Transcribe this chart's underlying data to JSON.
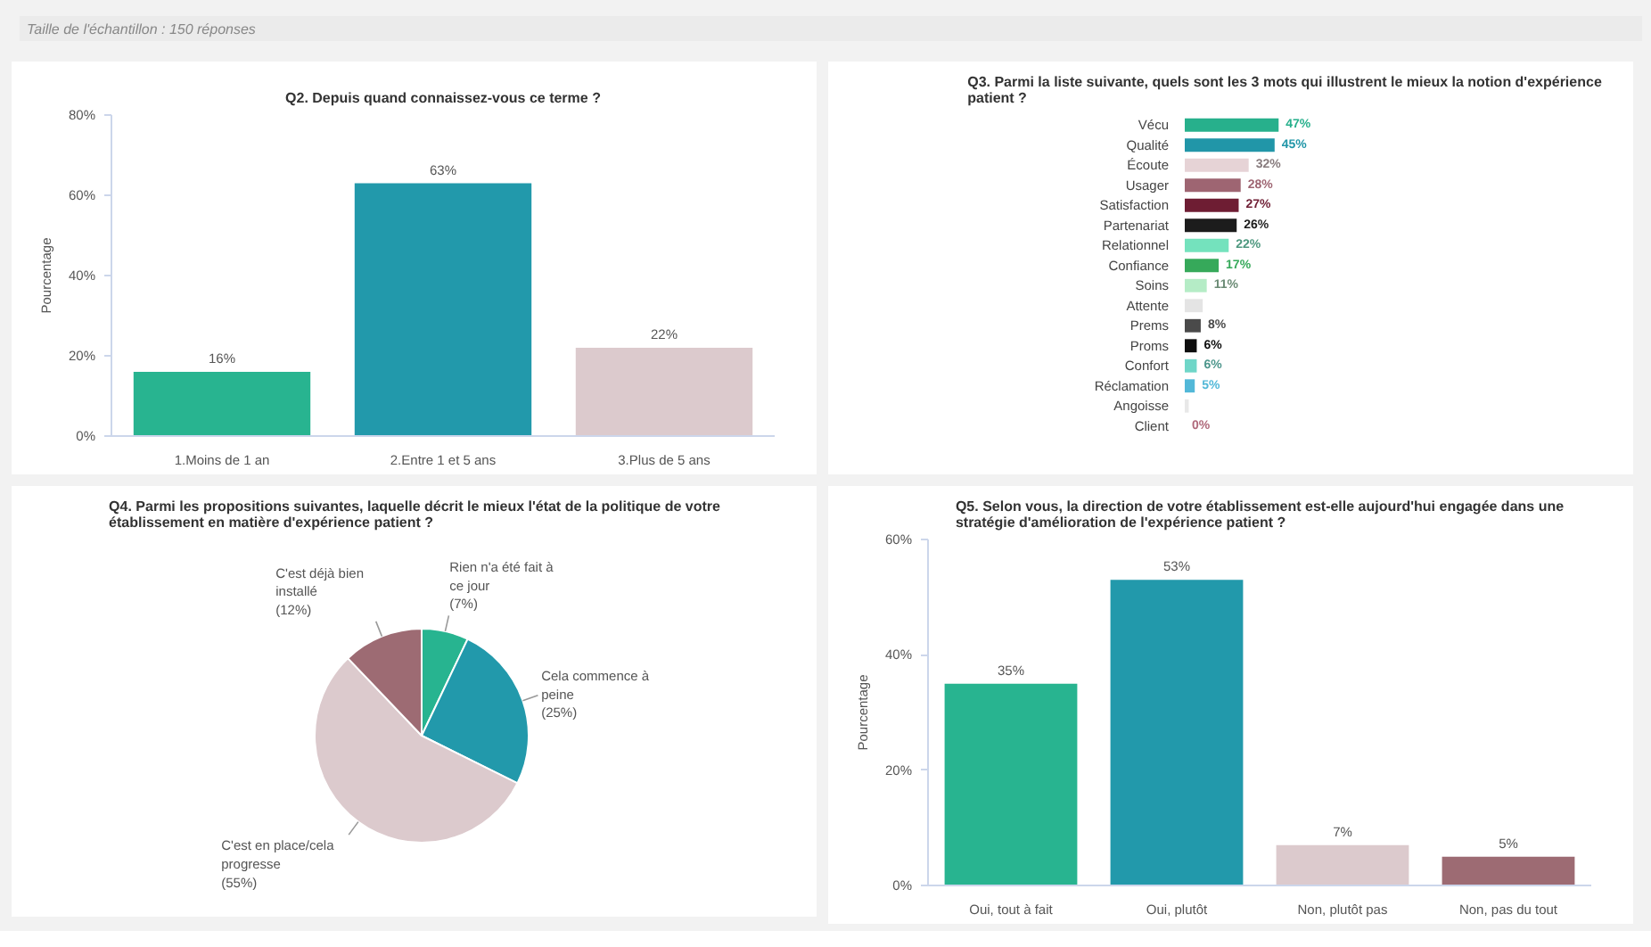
{
  "chart_data": [
    {
      "type": "bar",
      "title": "Q2. Depuis quand connaissez-vous ce terme ?",
      "ylabel": "Pourcentage",
      "annotations": [
        "Taille de l'échantillon : 150 réponses"
      ],
      "categories": [
        "1.Moins de 1 an",
        "2.Entre 1 et 5 ans",
        "3.Plus de 5 ans"
      ],
      "values": [
        16,
        63,
        22
      ],
      "colors": [
        "#28b490",
        "#2299ab",
        "#dccacd"
      ],
      "value_labels": [
        "16%",
        "63%",
        "22%"
      ],
      "ylim": [
        0,
        80
      ],
      "yticks": [
        {
          "value": 0,
          "label": "0%"
        },
        {
          "value": 20,
          "label": "20%"
        },
        {
          "value": 40,
          "label": "40%"
        },
        {
          "value": 60,
          "label": "60%"
        },
        {
          "value": 80,
          "label": "80%"
        }
      ]
    },
    {
      "type": "bar",
      "orientation": "horizontal",
      "title": "Q3. Parmi la liste suivante, quels sont les 3 mots qui illustrent le mieux la notion d'expérience patient ?",
      "categories": [
        "Vécu",
        "Qualité",
        "Écoute",
        "Usager",
        "Satisfaction",
        "Partenariat",
        "Relationnel",
        "Confiance",
        "Soins",
        "Attente",
        "Prems",
        "Proms",
        "Confort",
        "Réclamation",
        "Angoisse",
        "Client"
      ],
      "values": [
        47,
        45,
        32,
        28,
        27,
        26,
        22,
        17,
        11,
        9,
        8,
        6,
        6,
        5,
        2,
        0
      ],
      "colors": [
        "#27b08c",
        "#2196a8",
        "#e6d3d6",
        "#9e6572",
        "#6e1d33",
        "#1c1c1c",
        "#74e2bd",
        "#36a95a",
        "#b5ecc6",
        "#e4e4e4",
        "#4a4a4a",
        "#0e0e0e",
        "#6fd6c8",
        "#52b8d8",
        "#e8e8e8",
        "#f08fa8"
      ],
      "value_labels": [
        "47%",
        "45%",
        "32%",
        "28%",
        "27%",
        "26%",
        "22%",
        "17%",
        "11%",
        null,
        "8%",
        "6%",
        "6%",
        "5%",
        null,
        "0%"
      ],
      "xlim": [
        0,
        100
      ],
      "tick_labels": "y"
    },
    {
      "type": "pie",
      "title": "Q4. Parmi les propositions suivantes, laquelle décrit le mieux l'état de la politique de votre établissement en matière d'expérience patient ?",
      "categories": [
        "Rien n'a été fait à ce jour",
        "Cela commence à peine",
        "C'est en place/cela progresse",
        "C'est déjà bien installé"
      ],
      "values": [
        7,
        25,
        55,
        12
      ],
      "colors": [
        "#27b490",
        "#2299ab",
        "#dccacd",
        "#9d6b73"
      ],
      "value_labels": [
        "(7%)",
        "(25%)",
        "(55%)",
        "(12%)"
      ]
    },
    {
      "type": "bar",
      "title": "Q5. Selon vous, la direction de votre établissement est-elle aujourd'hui engagée dans une stratégie d'amélioration de l'expérience patient ?",
      "ylabel": "Pourcentage",
      "categories": [
        "Oui, tout à fait",
        "Oui, plutôt",
        "Non, plutôt pas",
        "Non, pas du tout"
      ],
      "values": [
        35,
        53,
        7,
        5
      ],
      "colors": [
        "#28b490",
        "#2299ab",
        "#dccacd",
        "#9d6b73"
      ],
      "value_labels": [
        "35%",
        "53%",
        "7%",
        "5%"
      ],
      "ylim": [
        0,
        60
      ],
      "yticks": [
        {
          "value": 0,
          "label": "0%"
        },
        {
          "value": 20,
          "label": "20%"
        },
        {
          "value": 40,
          "label": "40%"
        },
        {
          "value": 60,
          "label": "60%"
        }
      ]
    }
  ]
}
